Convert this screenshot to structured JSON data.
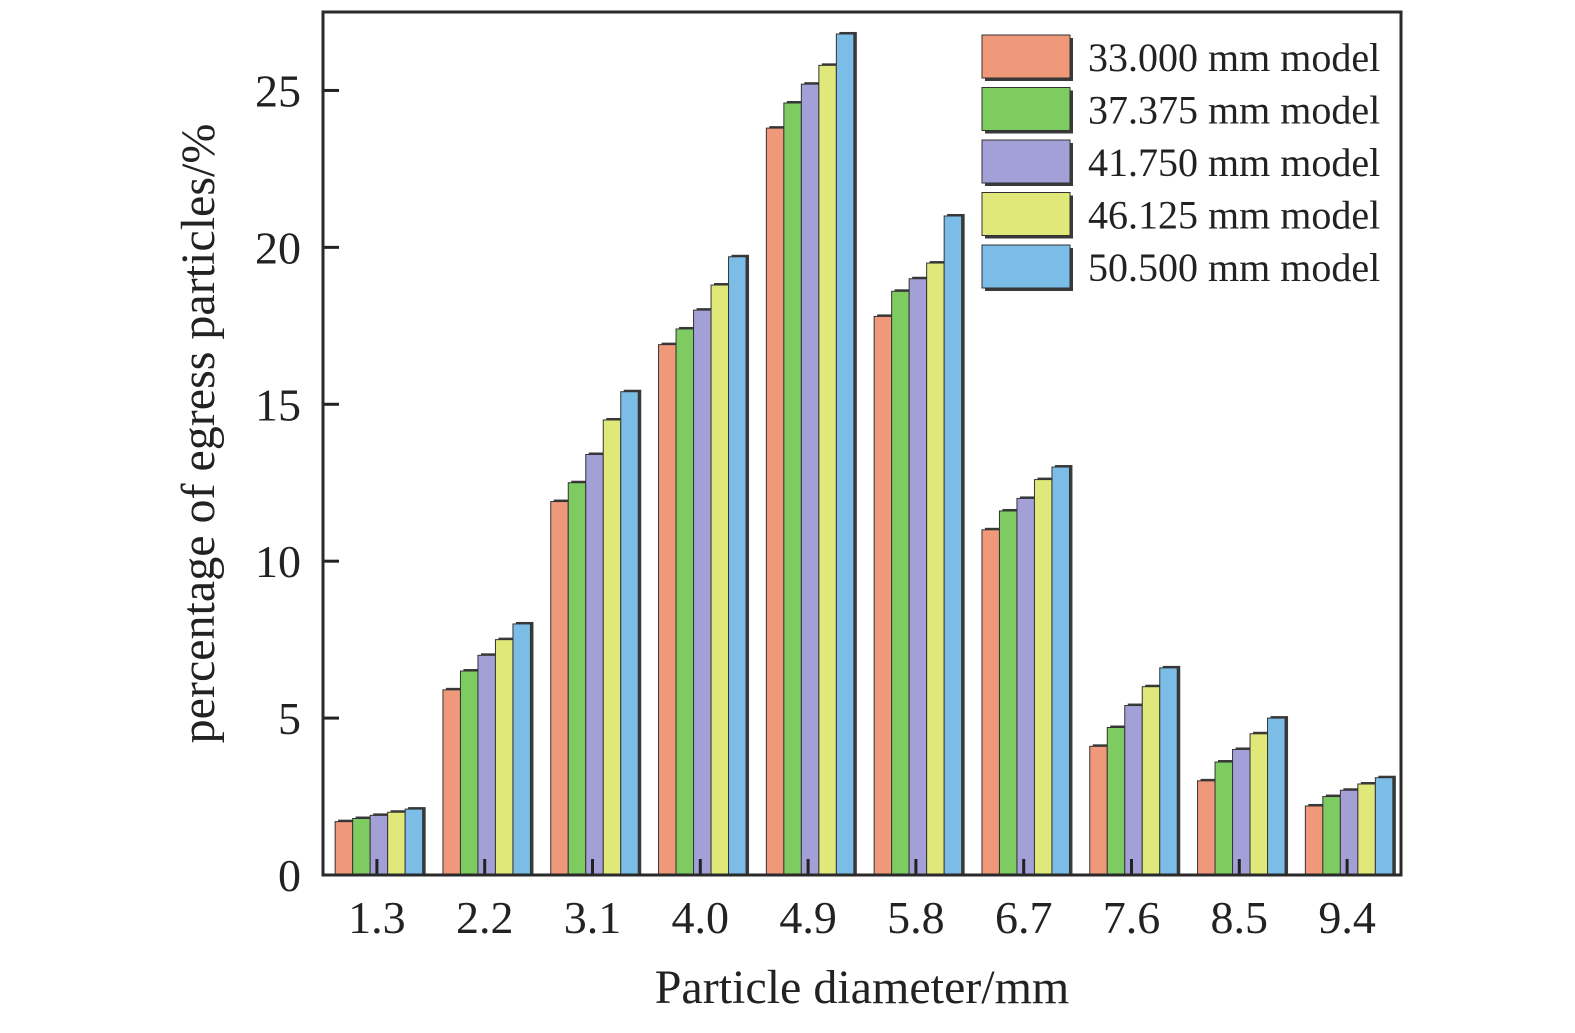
{
  "chart_data": {
    "type": "bar",
    "xlabel": "Particle diameter/mm",
    "ylabel": "percentage of egress particles/%",
    "categories": [
      "1.3",
      "2.2",
      "3.1",
      "4.0",
      "4.9",
      "5.8",
      "6.7",
      "7.6",
      "8.5",
      "9.4"
    ],
    "ylim": [
      0,
      27.5
    ],
    "yticks": [
      0,
      5,
      10,
      15,
      20,
      25
    ],
    "grid": false,
    "legend_position": "top-right",
    "series": [
      {
        "name": "33.000 mm model",
        "color": "#f0997a",
        "values": [
          1.7,
          5.9,
          11.9,
          16.9,
          23.8,
          17.8,
          11.0,
          4.1,
          3.0,
          2.2
        ]
      },
      {
        "name": "37.375 mm model",
        "color": "#7ecb62",
        "values": [
          1.8,
          6.5,
          12.5,
          17.4,
          24.6,
          18.6,
          11.6,
          4.7,
          3.6,
          2.5
        ]
      },
      {
        "name": "41.750 mm model",
        "color": "#a3a0d8",
        "values": [
          1.9,
          7.0,
          13.4,
          18.0,
          25.2,
          19.0,
          12.0,
          5.4,
          4.0,
          2.7
        ]
      },
      {
        "name": "46.125 mm model",
        "color": "#e0e87a",
        "values": [
          2.0,
          7.5,
          14.5,
          18.8,
          25.8,
          19.5,
          12.6,
          6.0,
          4.5,
          2.9
        ]
      },
      {
        "name": "50.500 mm model",
        "color": "#7bbde6",
        "values": [
          2.1,
          8.0,
          15.4,
          19.7,
          26.8,
          21.0,
          13.0,
          6.6,
          5.0,
          3.1
        ]
      }
    ]
  }
}
